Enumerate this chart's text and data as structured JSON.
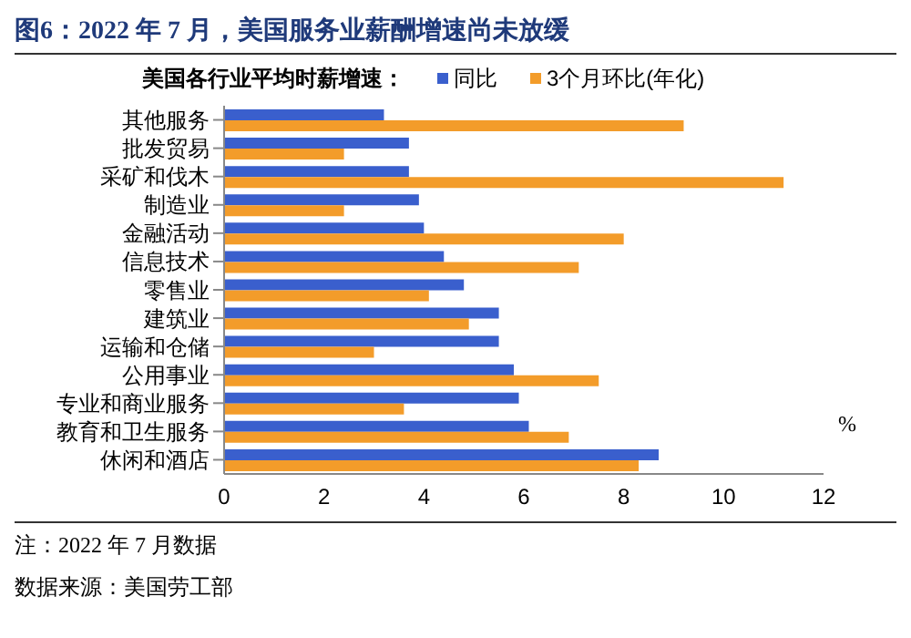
{
  "chart_data": {
    "type": "bar",
    "orientation": "horizontal",
    "title": "图6：2022 年 7 月，美国服务业薪酬增速尚未放缓",
    "legend_title": "美国各行业平均时薪增速：",
    "xlabel": "%",
    "annotations": [
      "注：2022 年 7 月数据",
      "数据来源：美国劳工部"
    ],
    "categories": [
      "其他服务",
      "批发贸易",
      "采矿和伐木",
      "制造业",
      "金融活动",
      "信息技术",
      "零售业",
      "建筑业",
      "运输和仓储",
      "公用事业",
      "专业和商业服务",
      "教育和卫生服务",
      "休闲和酒店"
    ],
    "series": [
      {
        "name": "同比",
        "color": "#3a5fcd",
        "values": [
          3.2,
          3.7,
          3.7,
          3.9,
          4.0,
          4.4,
          4.8,
          5.5,
          5.5,
          5.8,
          5.9,
          6.1,
          8.7
        ]
      },
      {
        "name": "3个月环比(年化)",
        "color": "#f39c2a",
        "values": [
          9.2,
          2.4,
          11.2,
          2.4,
          8.0,
          7.1,
          4.1,
          4.9,
          3.0,
          7.5,
          3.6,
          6.9,
          8.3
        ]
      }
    ],
    "xlim": [
      0,
      12
    ],
    "xticks": [
      0,
      2,
      4,
      6,
      8,
      10,
      12
    ],
    "legend": "top"
  }
}
